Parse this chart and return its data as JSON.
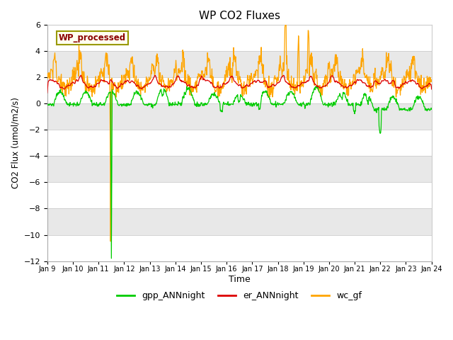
{
  "title": "WP CO2 Fluxes",
  "ylabel": "CO2 Flux (umol/m2/s)",
  "xlabel": "Time",
  "ylim": [
    -12,
    6
  ],
  "yticks": [
    -12,
    -10,
    -8,
    -6,
    -4,
    -2,
    0,
    2,
    4,
    6
  ],
  "annotation_text": "WP_processed",
  "annotation_color": "#8B0000",
  "annotation_bg": "#FFFFF0",
  "annotation_border": "#999900",
  "gpp_color": "#00CC00",
  "er_color": "#DD0000",
  "wc_color": "#FFA500",
  "bg_color": "#E8E8E8",
  "band_color": "#F5F5F5",
  "legend_labels": [
    "gpp_ANNnight",
    "er_ANNnight",
    "wc_gf"
  ],
  "start_day": 9,
  "end_day": 24,
  "n_points": 960,
  "wc_spike_day": 11.47,
  "wc_spike_value": -10.5,
  "gpp_spike_day": 11.5,
  "gpp_spike_value": -11.8
}
